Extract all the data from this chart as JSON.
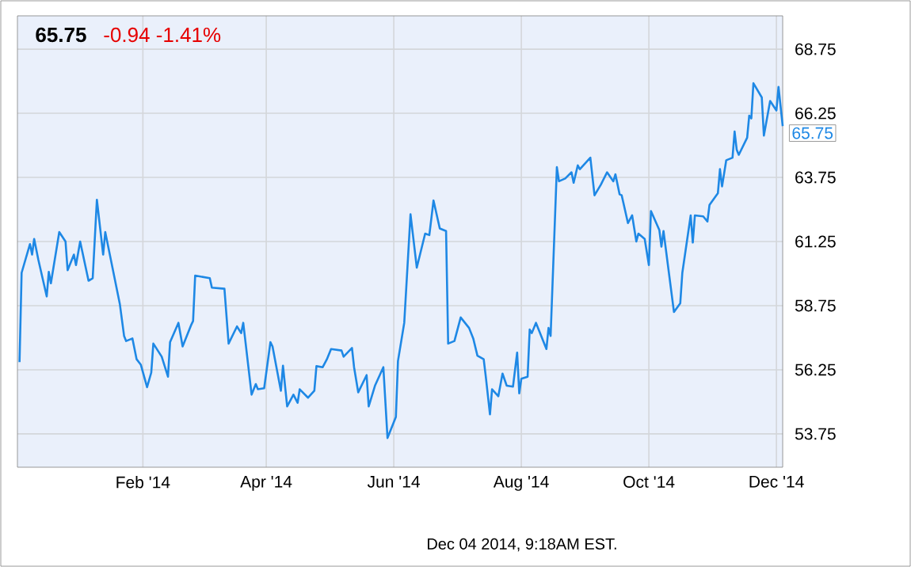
{
  "chart_data": {
    "type": "line",
    "title": "65.75",
    "subtitle": "-0.94  -1.41%",
    "annotations": [
      "Dec 04 2014, 9:18AM EST.",
      {
        "text": "65.75",
        "x": "2014-12-04",
        "y": 65.75
      }
    ],
    "xlim": [
      "2013-12-03",
      "2014-12-04"
    ],
    "ylim": [
      52.45,
      70.05
    ],
    "xticks": [
      {
        "value": "2014-02-01",
        "label": "Feb '14"
      },
      {
        "value": "2014-04-01",
        "label": "Apr '14"
      },
      {
        "value": "2014-06-01",
        "label": "Jun '14"
      },
      {
        "value": "2014-08-01",
        "label": "Aug '14"
      },
      {
        "value": "2014-10-01",
        "label": "Oct '14"
      },
      {
        "value": "2014-12-01",
        "label": "Dec '14"
      }
    ],
    "yticks": [
      53.75,
      56.25,
      58.75,
      61.25,
      63.75,
      66.25,
      68.75
    ],
    "grid": true,
    "line_style": "solid",
    "color": "#1e88e5",
    "x": [
      "2013-12-04",
      "2013-12-05",
      "2013-12-09",
      "2013-12-10",
      "2013-12-11",
      "2013-12-13",
      "2013-12-17",
      "2013-12-18",
      "2013-12-19",
      "2013-12-23",
      "2013-12-26",
      "2013-12-27",
      "2013-12-30",
      "2013-12-31",
      "2014-01-02",
      "2014-01-06",
      "2014-01-08",
      "2014-01-10",
      "2014-01-13",
      "2014-01-14",
      "2014-01-21",
      "2014-01-23",
      "2014-01-24",
      "2014-01-27",
      "2014-01-29",
      "2014-01-31",
      "2014-02-03",
      "2014-02-05",
      "2014-02-06",
      "2014-02-10",
      "2014-02-13",
      "2014-02-14",
      "2014-02-18",
      "2014-02-20",
      "2014-02-24",
      "2014-02-25",
      "2014-02-26",
      "2014-03-05",
      "2014-03-06",
      "2014-03-12",
      "2014-03-14",
      "2014-03-18",
      "2014-03-20",
      "2014-03-21",
      "2014-03-25",
      "2014-03-27",
      "2014-03-28",
      "2014-03-31",
      "2014-04-03",
      "2014-04-04",
      "2014-04-08",
      "2014-04-09",
      "2014-04-11",
      "2014-04-14",
      "2014-04-16",
      "2014-04-17",
      "2014-04-21",
      "2014-04-24",
      "2014-04-25",
      "2014-04-28",
      "2014-04-30",
      "2014-05-02",
      "2014-05-07",
      "2014-05-08",
      "2014-05-12",
      "2014-05-13",
      "2014-05-15",
      "2014-05-19",
      "2014-05-20",
      "2014-05-23",
      "2014-05-27",
      "2014-05-29",
      "2014-06-02",
      "2014-06-03",
      "2014-06-06",
      "2014-06-09",
      "2014-06-12",
      "2014-06-16",
      "2014-06-18",
      "2014-06-20",
      "2014-06-23",
      "2014-06-26",
      "2014-06-27",
      "2014-06-30",
      "2014-07-03",
      "2014-07-07",
      "2014-07-09",
      "2014-07-11",
      "2014-07-14",
      "2014-07-15",
      "2014-07-17",
      "2014-07-18",
      "2014-07-21",
      "2014-07-23",
      "2014-07-25",
      "2014-07-28",
      "2014-07-30",
      "2014-07-31",
      "2014-08-01",
      "2014-08-04",
      "2014-08-05",
      "2014-08-06",
      "2014-08-08",
      "2014-08-13",
      "2014-08-14",
      "2014-08-15",
      "2014-08-18",
      "2014-08-19",
      "2014-08-22",
      "2014-08-25",
      "2014-08-26",
      "2014-08-28",
      "2014-08-29",
      "2014-09-03",
      "2014-09-05",
      "2014-09-08",
      "2014-09-11",
      "2014-09-14",
      "2014-09-15",
      "2014-09-17",
      "2014-09-18",
      "2014-09-21",
      "2014-09-23",
      "2014-09-25",
      "2014-09-26",
      "2014-09-29",
      "2014-10-01",
      "2014-10-02",
      "2014-10-06",
      "2014-10-07",
      "2014-10-08",
      "2014-10-13",
      "2014-10-16",
      "2014-10-17",
      "2014-10-21",
      "2014-10-22",
      "2014-10-23",
      "2014-10-27",
      "2014-10-29",
      "2014-10-30",
      "2014-11-03",
      "2014-11-04",
      "2014-11-05",
      "2014-11-07",
      "2014-11-10",
      "2014-11-11",
      "2014-11-12",
      "2014-11-13",
      "2014-11-17",
      "2014-11-18",
      "2014-11-19",
      "2014-11-20",
      "2014-11-24",
      "2014-11-25",
      "2014-11-28",
      "2014-12-01",
      "2014-12-02",
      "2014-12-04"
    ],
    "values": [
      56.55,
      60.03,
      61.15,
      60.74,
      61.35,
      60.54,
      59.11,
      60.07,
      59.62,
      61.62,
      61.25,
      60.13,
      60.74,
      60.33,
      61.25,
      59.72,
      59.82,
      62.88,
      60.74,
      61.62,
      58.8,
      57.57,
      57.37,
      57.47,
      56.66,
      56.45,
      55.57,
      56.14,
      57.27,
      56.76,
      55.98,
      57.33,
      58.08,
      57.16,
      57.98,
      58.15,
      59.92,
      59.82,
      59.45,
      59.41,
      57.27,
      57.94,
      57.68,
      58.08,
      55.28,
      55.69,
      55.49,
      55.53,
      57.33,
      57.16,
      55.43,
      56.41,
      54.82,
      55.28,
      54.96,
      55.49,
      55.16,
      55.43,
      56.39,
      56.35,
      56.66,
      57.06,
      57.0,
      56.76,
      57.1,
      56.35,
      55.37,
      56.04,
      54.82,
      55.63,
      56.35,
      53.59,
      54.41,
      56.59,
      58.08,
      62.31,
      60.23,
      61.56,
      61.5,
      62.85,
      61.76,
      61.66,
      57.27,
      57.37,
      58.29,
      57.88,
      57.47,
      56.8,
      56.66,
      55.98,
      54.51,
      55.49,
      55.22,
      56.1,
      55.63,
      55.59,
      56.92,
      55.33,
      55.9,
      55.98,
      57.82,
      57.68,
      58.08,
      57.06,
      57.88,
      57.57,
      64.15,
      63.6,
      63.71,
      63.95,
      63.54,
      64.22,
      64.07,
      64.52,
      63.05,
      63.46,
      63.95,
      63.6,
      63.87,
      63.09,
      63.05,
      61.97,
      62.27,
      61.25,
      61.56,
      61.35,
      60.33,
      62.44,
      61.7,
      61.05,
      61.66,
      58.5,
      58.84,
      60.03,
      62.27,
      61.21,
      62.27,
      62.23,
      62.03,
      62.68,
      63.13,
      64.07,
      63.4,
      64.42,
      64.52,
      65.54,
      64.83,
      64.63,
      65.3,
      66.16,
      66.05,
      67.42,
      66.87,
      65.38,
      66.73,
      66.36,
      67.28,
      65.75
    ]
  }
}
